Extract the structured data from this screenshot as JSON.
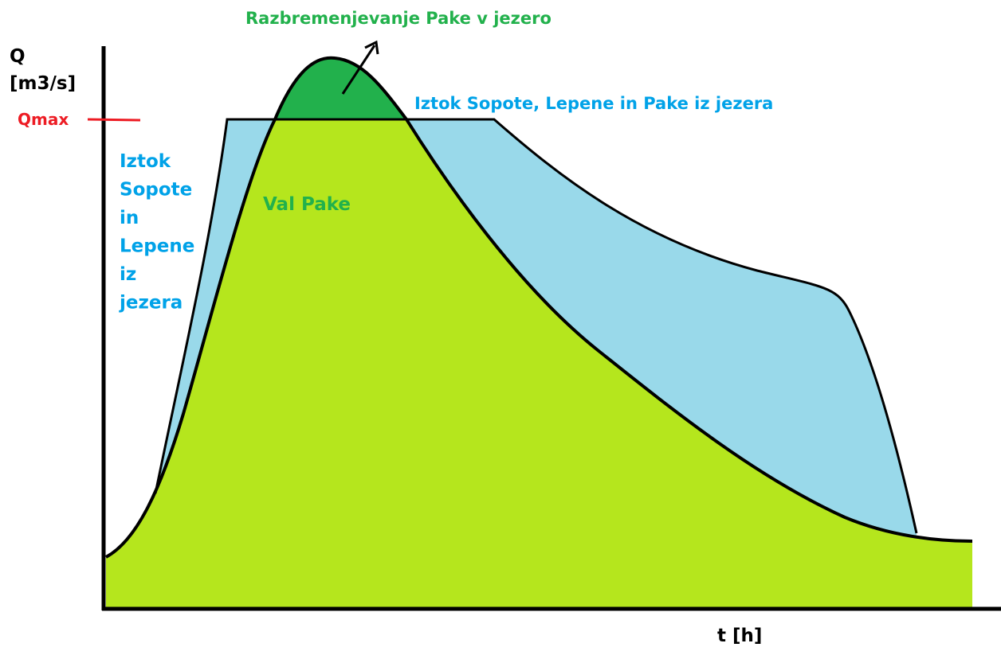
{
  "axis": {
    "y_label_lines": [
      "Q",
      "[m3/s]"
    ],
    "x_label": "t [h]",
    "qmax_label": "Qmax"
  },
  "labels": {
    "relief": "Razbremenjevanje Pake v jezero",
    "outflow_all": "Iztok Sopote, Lepene in Pake iz jezera",
    "outflow_left_lines": [
      "Iztok",
      "Sopote",
      "in",
      "Lepene",
      "iz",
      "jezera"
    ],
    "wave": "Val Pake"
  }
}
